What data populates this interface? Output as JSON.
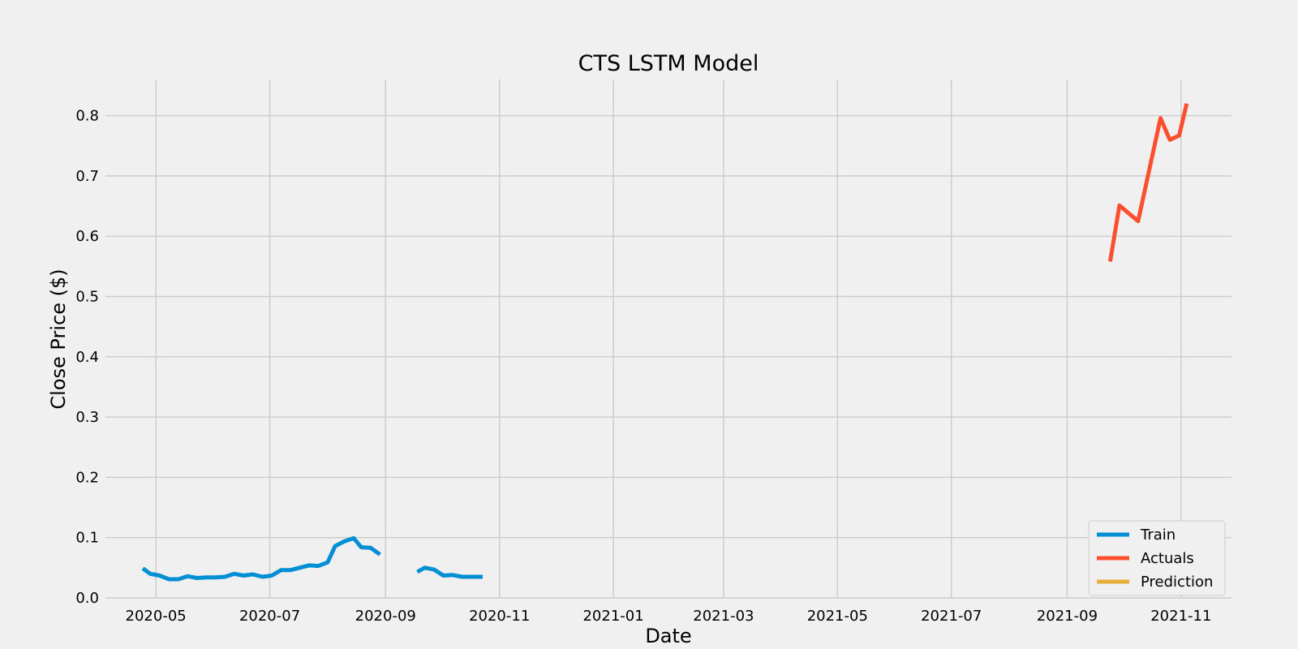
{
  "chart_data": {
    "type": "line",
    "title": "CTS LSTM Model",
    "xlabel": "Date",
    "ylabel": "Close Price ($)",
    "grid": true,
    "legend_position": "bottom-right",
    "xlim": [
      "2020-04-04",
      "2021-11-28"
    ],
    "ylim": [
      0,
      0.86
    ],
    "x_ticks": [
      "2020-05-01",
      "2020-07-01",
      "2020-09-01",
      "2020-11-01",
      "2021-01-01",
      "2021-03-01",
      "2021-05-01",
      "2021-07-01",
      "2021-09-01",
      "2021-11-01"
    ],
    "x_tick_labels": [
      "2020-05",
      "2020-07",
      "2020-09",
      "2020-11",
      "2021-01",
      "2021-03",
      "2021-05",
      "2021-07",
      "2021-09",
      "2021-11"
    ],
    "y_ticks": [
      0.0,
      0.1,
      0.2,
      0.3,
      0.4,
      0.5,
      0.6,
      0.7,
      0.8
    ],
    "y_tick_labels": [
      "0.0",
      "0.1",
      "0.2",
      "0.3",
      "0.4",
      "0.5",
      "0.6",
      "0.7",
      "0.8"
    ],
    "series": [
      {
        "name": "Train",
        "color": "#008fd5",
        "segments": [
          [
            [
              "2020-04-24",
              0.049
            ],
            [
              "2020-04-28",
              0.04
            ],
            [
              "2020-05-03",
              0.037
            ],
            [
              "2020-05-08",
              0.031
            ],
            [
              "2020-05-13",
              0.031
            ],
            [
              "2020-05-18",
              0.036
            ],
            [
              "2020-05-23",
              0.033
            ],
            [
              "2020-05-28",
              0.034
            ],
            [
              "2020-06-02",
              0.034
            ],
            [
              "2020-06-07",
              0.035
            ],
            [
              "2020-06-12",
              0.04
            ],
            [
              "2020-06-17",
              0.037
            ],
            [
              "2020-06-22",
              0.039
            ],
            [
              "2020-06-27",
              0.035
            ],
            [
              "2020-07-02",
              0.037
            ],
            [
              "2020-07-07",
              0.046
            ],
            [
              "2020-07-12",
              0.046
            ],
            [
              "2020-07-17",
              0.05
            ],
            [
              "2020-07-22",
              0.054
            ],
            [
              "2020-07-27",
              0.053
            ],
            [
              "2020-08-01",
              0.059
            ],
            [
              "2020-08-05",
              0.086
            ],
            [
              "2020-08-10",
              0.094
            ],
            [
              "2020-08-15",
              0.099
            ],
            [
              "2020-08-19",
              0.084
            ],
            [
              "2020-08-24",
              0.083
            ],
            [
              "2020-08-29",
              0.072
            ]
          ],
          [
            [
              "2020-09-18",
              0.043
            ],
            [
              "2020-09-22",
              0.05
            ],
            [
              "2020-09-27",
              0.047
            ],
            [
              "2020-10-02",
              0.037
            ],
            [
              "2020-10-07",
              0.038
            ],
            [
              "2020-10-12",
              0.035
            ],
            [
              "2020-10-17",
              0.035
            ],
            [
              "2020-10-23",
              0.035
            ]
          ]
        ]
      },
      {
        "name": "Actuals",
        "color": "#fc4f30",
        "segments": [
          [
            [
              "2021-09-24",
              0.558
            ],
            [
              "2021-09-29",
              0.651
            ],
            [
              "2021-10-09",
              0.625
            ],
            [
              "2021-10-21",
              0.796
            ],
            [
              "2021-10-26",
              0.76
            ],
            [
              "2021-10-31",
              0.767
            ],
            [
              "2021-11-04",
              0.82
            ]
          ]
        ]
      },
      {
        "name": "Prediction",
        "color": "#e5ae38",
        "segments": []
      }
    ]
  }
}
